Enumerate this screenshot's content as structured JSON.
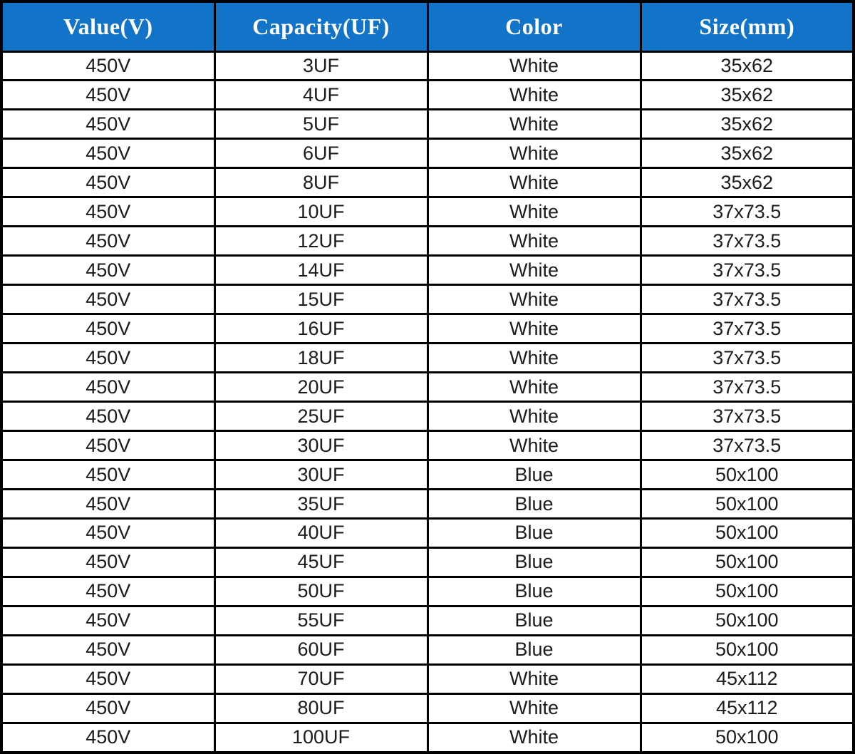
{
  "chart_data": {
    "type": "table",
    "columns": [
      "Value(V)",
      "Capacity(UF)",
      "Color",
      "Size(mm)"
    ],
    "rows": [
      [
        "450V",
        "3UF",
        "White",
        "35x62"
      ],
      [
        "450V",
        "4UF",
        "White",
        "35x62"
      ],
      [
        "450V",
        "5UF",
        "White",
        "35x62"
      ],
      [
        "450V",
        "6UF",
        "White",
        "35x62"
      ],
      [
        "450V",
        "8UF",
        "White",
        "35x62"
      ],
      [
        "450V",
        "10UF",
        "White",
        "37x73.5"
      ],
      [
        "450V",
        "12UF",
        "White",
        "37x73.5"
      ],
      [
        "450V",
        "14UF",
        "White",
        "37x73.5"
      ],
      [
        "450V",
        "15UF",
        "White",
        "37x73.5"
      ],
      [
        "450V",
        "16UF",
        "White",
        "37x73.5"
      ],
      [
        "450V",
        "18UF",
        "White",
        "37x73.5"
      ],
      [
        "450V",
        "20UF",
        "White",
        "37x73.5"
      ],
      [
        "450V",
        "25UF",
        "White",
        "37x73.5"
      ],
      [
        "450V",
        "30UF",
        "White",
        "37x73.5"
      ],
      [
        "450V",
        "30UF",
        "Blue",
        "50x100"
      ],
      [
        "450V",
        "35UF",
        "Blue",
        "50x100"
      ],
      [
        "450V",
        "40UF",
        "Blue",
        "50x100"
      ],
      [
        "450V",
        "45UF",
        "Blue",
        "50x100"
      ],
      [
        "450V",
        "50UF",
        "Blue",
        "50x100"
      ],
      [
        "450V",
        "55UF",
        "Blue",
        "50x100"
      ],
      [
        "450V",
        "60UF",
        "Blue",
        "50x100"
      ],
      [
        "450V",
        "70UF",
        "White",
        "45x112"
      ],
      [
        "450V",
        "80UF",
        "White",
        "45x112"
      ],
      [
        "450V",
        "100UF",
        "White",
        "50x100"
      ]
    ]
  },
  "colors": {
    "header_bg": "#1274C8",
    "header_text": "#FFFFFF",
    "border": "#000000",
    "body_text": "#1C1C1C",
    "body_bg": "#FFFFFF"
  }
}
